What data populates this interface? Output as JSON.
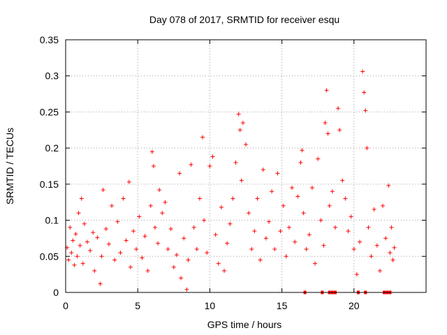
{
  "chart_data": {
    "type": "scatter",
    "title": "Day 078 of 2017, SRMTID for receiver esqu",
    "xlabel": "GPS time / hours",
    "ylabel": "SRMTID / TECUs",
    "xlim": [
      0,
      25
    ],
    "ylim": [
      0,
      0.35
    ],
    "x_ticks": [
      0,
      5,
      10,
      15,
      20
    ],
    "x_tick_labels": [
      "0",
      "5",
      "10",
      "15",
      "20"
    ],
    "y_ticks": [
      0,
      0.05,
      0.1,
      0.15,
      0.2,
      0.25,
      0.3,
      0.35
    ],
    "y_tick_labels": [
      "0",
      "0.05",
      "0.1",
      "0.15",
      "0.2",
      "0.25",
      "0.3",
      "0.35"
    ],
    "grid": true,
    "marker": "+",
    "series_color": "#ff0000",
    "grid_color": "#a0a0a0",
    "series": [
      {
        "name": "SRMTID",
        "points": [
          [
            0.1,
            0.062
          ],
          [
            0.2,
            0.045
          ],
          [
            0.3,
            0.09
          ],
          [
            0.4,
            0.055
          ],
          [
            0.5,
            0.072
          ],
          [
            0.6,
            0.038
          ],
          [
            0.7,
            0.081
          ],
          [
            0.8,
            0.05
          ],
          [
            0.9,
            0.11
          ],
          [
            1.0,
            0.065
          ],
          [
            1.1,
            0.13
          ],
          [
            1.2,
            0.04
          ],
          [
            1.3,
            0.095
          ],
          [
            1.5,
            0.07
          ],
          [
            1.7,
            0.058
          ],
          [
            1.9,
            0.083
          ],
          [
            2.0,
            0.03
          ],
          [
            2.2,
            0.076
          ],
          [
            2.4,
            0.012
          ],
          [
            2.5,
            0.05
          ],
          [
            2.6,
            0.142
          ],
          [
            2.8,
            0.088
          ],
          [
            3.0,
            0.067
          ],
          [
            3.2,
            0.12
          ],
          [
            3.4,
            0.045
          ],
          [
            3.6,
            0.098
          ],
          [
            3.8,
            0.055
          ],
          [
            4.0,
            0.13
          ],
          [
            4.2,
            0.072
          ],
          [
            4.4,
            0.153
          ],
          [
            4.5,
            0.035
          ],
          [
            4.7,
            0.085
          ],
          [
            4.9,
            0.06
          ],
          [
            5.1,
            0.105
          ],
          [
            5.3,
            0.048
          ],
          [
            5.5,
            0.078
          ],
          [
            5.7,
            0.03
          ],
          [
            5.9,
            0.12
          ],
          [
            6.0,
            0.195
          ],
          [
            6.1,
            0.175
          ],
          [
            6.2,
            0.09
          ],
          [
            6.4,
            0.068
          ],
          [
            6.5,
            0.142
          ],
          [
            6.7,
            0.11
          ],
          [
            6.9,
            0.125
          ],
          [
            7.1,
            0.06
          ],
          [
            7.3,
            0.088
          ],
          [
            7.5,
            0.035
          ],
          [
            7.7,
            0.052
          ],
          [
            7.9,
            0.165
          ],
          [
            8.0,
            0.02
          ],
          [
            8.2,
            0.075
          ],
          [
            8.4,
            0.004
          ],
          [
            8.5,
            0.045
          ],
          [
            8.7,
            0.177
          ],
          [
            8.9,
            0.09
          ],
          [
            9.1,
            0.06
          ],
          [
            9.3,
            0.13
          ],
          [
            9.5,
            0.215
          ],
          [
            9.6,
            0.1
          ],
          [
            9.8,
            0.055
          ],
          [
            10.0,
            0.175
          ],
          [
            10.2,
            0.188
          ],
          [
            10.4,
            0.08
          ],
          [
            10.6,
            0.04
          ],
          [
            10.8,
            0.118
          ],
          [
            11.0,
            0.03
          ],
          [
            11.2,
            0.068
          ],
          [
            11.4,
            0.095
          ],
          [
            11.6,
            0.13
          ],
          [
            11.8,
            0.18
          ],
          [
            12.0,
            0.247
          ],
          [
            12.1,
            0.225
          ],
          [
            12.2,
            0.155
          ],
          [
            12.3,
            0.235
          ],
          [
            12.5,
            0.205
          ],
          [
            12.7,
            0.11
          ],
          [
            12.9,
            0.06
          ],
          [
            13.1,
            0.085
          ],
          [
            13.3,
            0.13
          ],
          [
            13.5,
            0.045
          ],
          [
            13.7,
            0.17
          ],
          [
            13.9,
            0.075
          ],
          [
            14.1,
            0.098
          ],
          [
            14.3,
            0.14
          ],
          [
            14.5,
            0.06
          ],
          [
            14.7,
            0.165
          ],
          [
            14.9,
            0.085
          ],
          [
            15.1,
            0.12
          ],
          [
            15.3,
            0.05
          ],
          [
            15.5,
            0.09
          ],
          [
            15.7,
            0.145
          ],
          [
            15.9,
            0.07
          ],
          [
            16.1,
            0.133
          ],
          [
            16.3,
            0.18
          ],
          [
            16.4,
            0.197
          ],
          [
            16.5,
            0.11
          ],
          [
            16.7,
            0.06
          ],
          [
            16.9,
            0.08
          ],
          [
            17.1,
            0.145
          ],
          [
            17.3,
            0.04
          ],
          [
            17.5,
            0.185
          ],
          [
            17.7,
            0.1
          ],
          [
            17.9,
            0.065
          ],
          [
            18.0,
            0.235
          ],
          [
            18.1,
            0.28
          ],
          [
            18.2,
            0.22
          ],
          [
            18.3,
            0.12
          ],
          [
            18.5,
            0.14
          ],
          [
            18.7,
            0.09
          ],
          [
            18.9,
            0.255
          ],
          [
            19.0,
            0.225
          ],
          [
            19.2,
            0.155
          ],
          [
            19.4,
            0.13
          ],
          [
            19.6,
            0.085
          ],
          [
            19.8,
            0.105
          ],
          [
            20.0,
            0.06
          ],
          [
            20.2,
            0.025
          ],
          [
            20.4,
            0.07
          ],
          [
            20.6,
            0.306
          ],
          [
            20.7,
            0.277
          ],
          [
            20.8,
            0.252
          ],
          [
            20.9,
            0.2
          ],
          [
            21.0,
            0.09
          ],
          [
            21.2,
            0.05
          ],
          [
            21.4,
            0.115
          ],
          [
            21.6,
            0.065
          ],
          [
            21.8,
            0.03
          ],
          [
            22.0,
            0.12
          ],
          [
            22.2,
            0.075
          ],
          [
            22.4,
            0.148
          ],
          [
            22.5,
            0.055
          ],
          [
            22.6,
            0.09
          ],
          [
            22.7,
            0.045
          ],
          [
            22.8,
            0.062
          ]
        ]
      }
    ],
    "zero_markers": [
      16.6,
      17.8,
      18.3,
      18.5,
      18.7,
      20.3,
      20.8,
      22.1,
      22.3,
      22.5
    ]
  }
}
